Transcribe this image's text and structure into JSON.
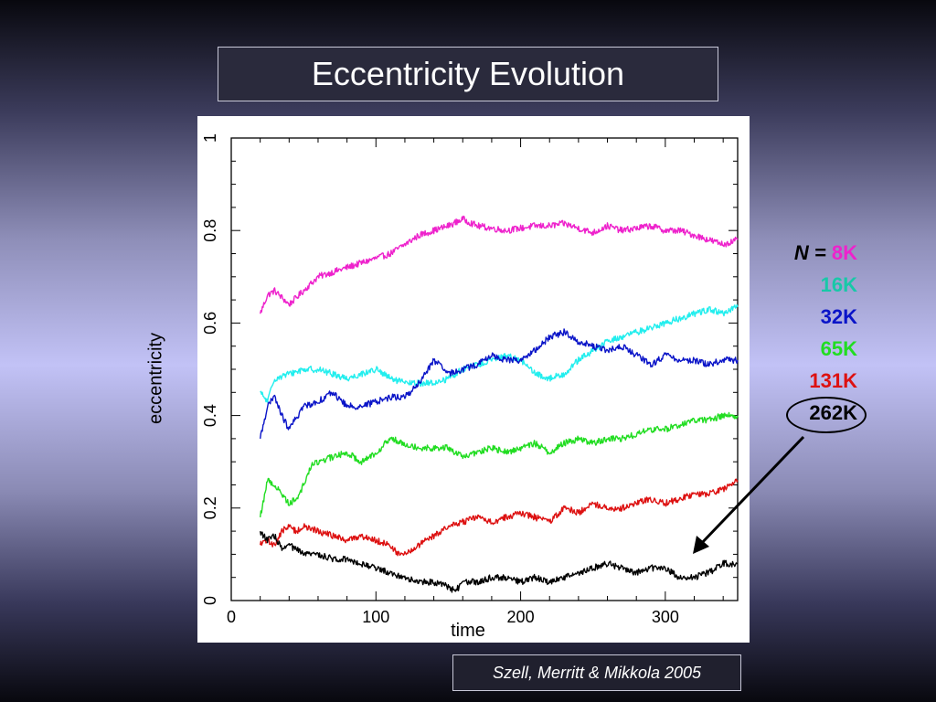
{
  "slide": {
    "title": "Eccentricity Evolution",
    "citation": "Szell, Merritt & Mikkola 2005"
  },
  "legend": {
    "prefix": "N =",
    "items": [
      {
        "label": "8K",
        "color": "#ee22cc"
      },
      {
        "label": "16K",
        "color": "#18c8a8"
      },
      {
        "label": "32K",
        "color": "#0a14c8"
      },
      {
        "label": "65K",
        "color": "#22dd22"
      },
      {
        "label": "131K",
        "color": "#dd1111"
      },
      {
        "label": "262K",
        "color": "#000000",
        "circled": true
      }
    ]
  },
  "chart_data": {
    "type": "line",
    "title": "Eccentricity Evolution",
    "xlabel": "time",
    "ylabel": "eccentricity",
    "xlim": [
      0,
      350
    ],
    "ylim": [
      0,
      1
    ],
    "xticks": [
      0,
      100,
      200,
      300
    ],
    "yticks": [
      0,
      0.2,
      0.4,
      0.6,
      0.8,
      1
    ],
    "ytick_labels": [
      "0",
      "0.2",
      "0.4",
      "0.6",
      "0.8",
      "1"
    ],
    "grid": false,
    "legend_position": "right",
    "series": [
      {
        "name": "8K",
        "color": "#ee22cc",
        "x": [
          20,
          25,
          30,
          40,
          50,
          60,
          70,
          80,
          90,
          100,
          110,
          120,
          130,
          140,
          150,
          160,
          170,
          180,
          190,
          200,
          210,
          220,
          230,
          240,
          250,
          260,
          270,
          280,
          290,
          300,
          310,
          320,
          330,
          340,
          350
        ],
        "y": [
          0.62,
          0.66,
          0.67,
          0.64,
          0.67,
          0.7,
          0.71,
          0.72,
          0.73,
          0.74,
          0.75,
          0.77,
          0.79,
          0.8,
          0.81,
          0.825,
          0.81,
          0.805,
          0.8,
          0.805,
          0.81,
          0.81,
          0.815,
          0.805,
          0.795,
          0.81,
          0.8,
          0.805,
          0.81,
          0.8,
          0.8,
          0.79,
          0.78,
          0.77,
          0.78
        ]
      },
      {
        "name": "16K",
        "color": "#22eeee",
        "x": [
          20,
          25,
          30,
          40,
          50,
          60,
          70,
          80,
          90,
          100,
          110,
          120,
          130,
          140,
          150,
          160,
          170,
          180,
          190,
          200,
          210,
          220,
          230,
          240,
          250,
          260,
          270,
          280,
          290,
          300,
          310,
          320,
          330,
          340,
          350
        ],
        "y": [
          0.45,
          0.43,
          0.48,
          0.49,
          0.5,
          0.5,
          0.49,
          0.48,
          0.49,
          0.5,
          0.48,
          0.47,
          0.47,
          0.47,
          0.48,
          0.5,
          0.51,
          0.52,
          0.53,
          0.52,
          0.49,
          0.48,
          0.49,
          0.52,
          0.54,
          0.56,
          0.57,
          0.58,
          0.59,
          0.6,
          0.61,
          0.62,
          0.63,
          0.62,
          0.635
        ]
      },
      {
        "name": "32K",
        "color": "#0a14c8",
        "x": [
          20,
          25,
          30,
          35,
          40,
          50,
          60,
          70,
          80,
          90,
          100,
          110,
          120,
          130,
          140,
          150,
          160,
          170,
          180,
          190,
          200,
          210,
          220,
          230,
          240,
          250,
          260,
          270,
          280,
          290,
          300,
          310,
          320,
          330,
          340,
          350
        ],
        "y": [
          0.35,
          0.42,
          0.44,
          0.4,
          0.37,
          0.42,
          0.43,
          0.45,
          0.42,
          0.42,
          0.43,
          0.44,
          0.44,
          0.47,
          0.52,
          0.49,
          0.5,
          0.51,
          0.53,
          0.52,
          0.52,
          0.54,
          0.57,
          0.58,
          0.56,
          0.55,
          0.54,
          0.55,
          0.53,
          0.51,
          0.53,
          0.52,
          0.52,
          0.51,
          0.52,
          0.52
        ]
      },
      {
        "name": "65K",
        "color": "#22dd22",
        "x": [
          20,
          25,
          30,
          35,
          40,
          45,
          50,
          55,
          60,
          70,
          80,
          90,
          100,
          110,
          120,
          130,
          140,
          150,
          160,
          170,
          180,
          190,
          200,
          210,
          220,
          230,
          240,
          250,
          260,
          270,
          280,
          290,
          300,
          310,
          320,
          330,
          340,
          350
        ],
        "y": [
          0.18,
          0.26,
          0.25,
          0.23,
          0.21,
          0.22,
          0.25,
          0.29,
          0.3,
          0.31,
          0.32,
          0.3,
          0.32,
          0.35,
          0.34,
          0.33,
          0.33,
          0.33,
          0.31,
          0.32,
          0.33,
          0.32,
          0.33,
          0.34,
          0.32,
          0.34,
          0.35,
          0.34,
          0.35,
          0.35,
          0.36,
          0.37,
          0.37,
          0.38,
          0.39,
          0.39,
          0.4,
          0.4
        ]
      },
      {
        "name": "131K",
        "color": "#dd1111",
        "x": [
          20,
          25,
          30,
          35,
          40,
          45,
          50,
          60,
          70,
          80,
          90,
          100,
          110,
          115,
          120,
          130,
          140,
          150,
          160,
          170,
          180,
          190,
          200,
          210,
          220,
          230,
          240,
          250,
          260,
          270,
          280,
          290,
          300,
          310,
          320,
          330,
          340,
          350
        ],
        "y": [
          0.12,
          0.13,
          0.12,
          0.15,
          0.16,
          0.15,
          0.16,
          0.15,
          0.14,
          0.13,
          0.14,
          0.13,
          0.12,
          0.1,
          0.1,
          0.12,
          0.14,
          0.16,
          0.17,
          0.18,
          0.17,
          0.18,
          0.19,
          0.18,
          0.17,
          0.2,
          0.19,
          0.21,
          0.2,
          0.2,
          0.21,
          0.22,
          0.21,
          0.22,
          0.23,
          0.23,
          0.24,
          0.26
        ]
      },
      {
        "name": "262K",
        "color": "#000000",
        "x": [
          20,
          25,
          30,
          35,
          40,
          45,
          50,
          60,
          70,
          80,
          90,
          100,
          110,
          120,
          130,
          140,
          150,
          155,
          160,
          170,
          180,
          190,
          200,
          210,
          220,
          230,
          240,
          250,
          260,
          270,
          280,
          290,
          300,
          310,
          320,
          330,
          340,
          350
        ],
        "y": [
          0.15,
          0.13,
          0.14,
          0.11,
          0.12,
          0.11,
          0.1,
          0.1,
          0.09,
          0.09,
          0.08,
          0.07,
          0.06,
          0.05,
          0.04,
          0.04,
          0.03,
          0.02,
          0.04,
          0.04,
          0.05,
          0.05,
          0.04,
          0.05,
          0.04,
          0.05,
          0.06,
          0.07,
          0.08,
          0.07,
          0.06,
          0.07,
          0.07,
          0.05,
          0.05,
          0.06,
          0.08,
          0.08
        ]
      }
    ]
  }
}
